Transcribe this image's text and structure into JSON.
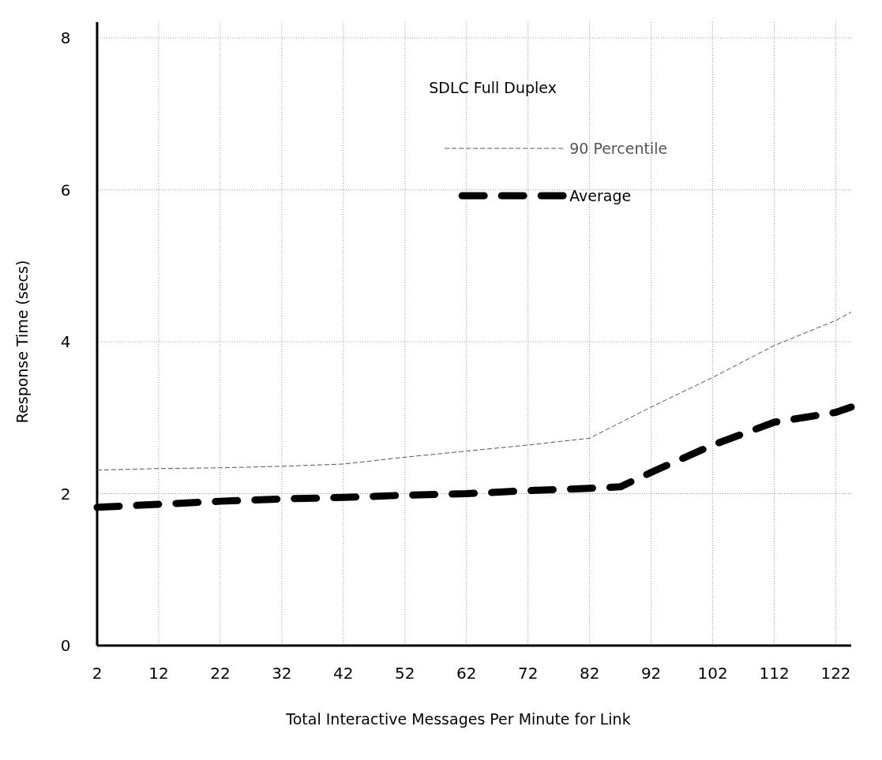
{
  "chart_data": {
    "type": "line",
    "xlabel": "Total Interactive Messages Per Minute for Link",
    "ylabel": "Response Time (secs)",
    "legend_title": "SDLC Full Duplex",
    "legend": "top right",
    "grid": true,
    "xlim": [
      2,
      124.5
    ],
    "xticks": [
      2,
      12,
      22,
      32,
      42,
      52,
      62,
      72,
      82,
      92,
      102,
      112,
      122
    ],
    "ylim": [
      0,
      8
    ],
    "yticks": [
      0,
      2,
      4,
      6,
      8
    ],
    "series": [
      {
        "name": "90 Percentile",
        "color": "#555555",
        "line_style": "dashed",
        "x": [
          2,
          12,
          22,
          32,
          42,
          52,
          62,
          72,
          82,
          92,
          102,
          112,
          122,
          124.5
        ],
        "values": [
          2.31,
          2.33,
          2.34,
          2.36,
          2.39,
          2.48,
          2.56,
          2.64,
          2.73,
          3.14,
          3.53,
          3.95,
          4.28,
          4.39
        ]
      },
      {
        "name": "Average",
        "color": "#000000",
        "line_style": "dashed",
        "x": [
          2,
          12,
          22,
          32,
          42,
          52,
          62,
          72,
          82,
          87,
          92,
          102,
          112,
          122,
          124.5
        ],
        "values": [
          1.82,
          1.86,
          1.9,
          1.93,
          1.95,
          1.98,
          2.0,
          2.04,
          2.07,
          2.09,
          2.28,
          2.64,
          2.94,
          3.07,
          3.14
        ]
      }
    ]
  }
}
